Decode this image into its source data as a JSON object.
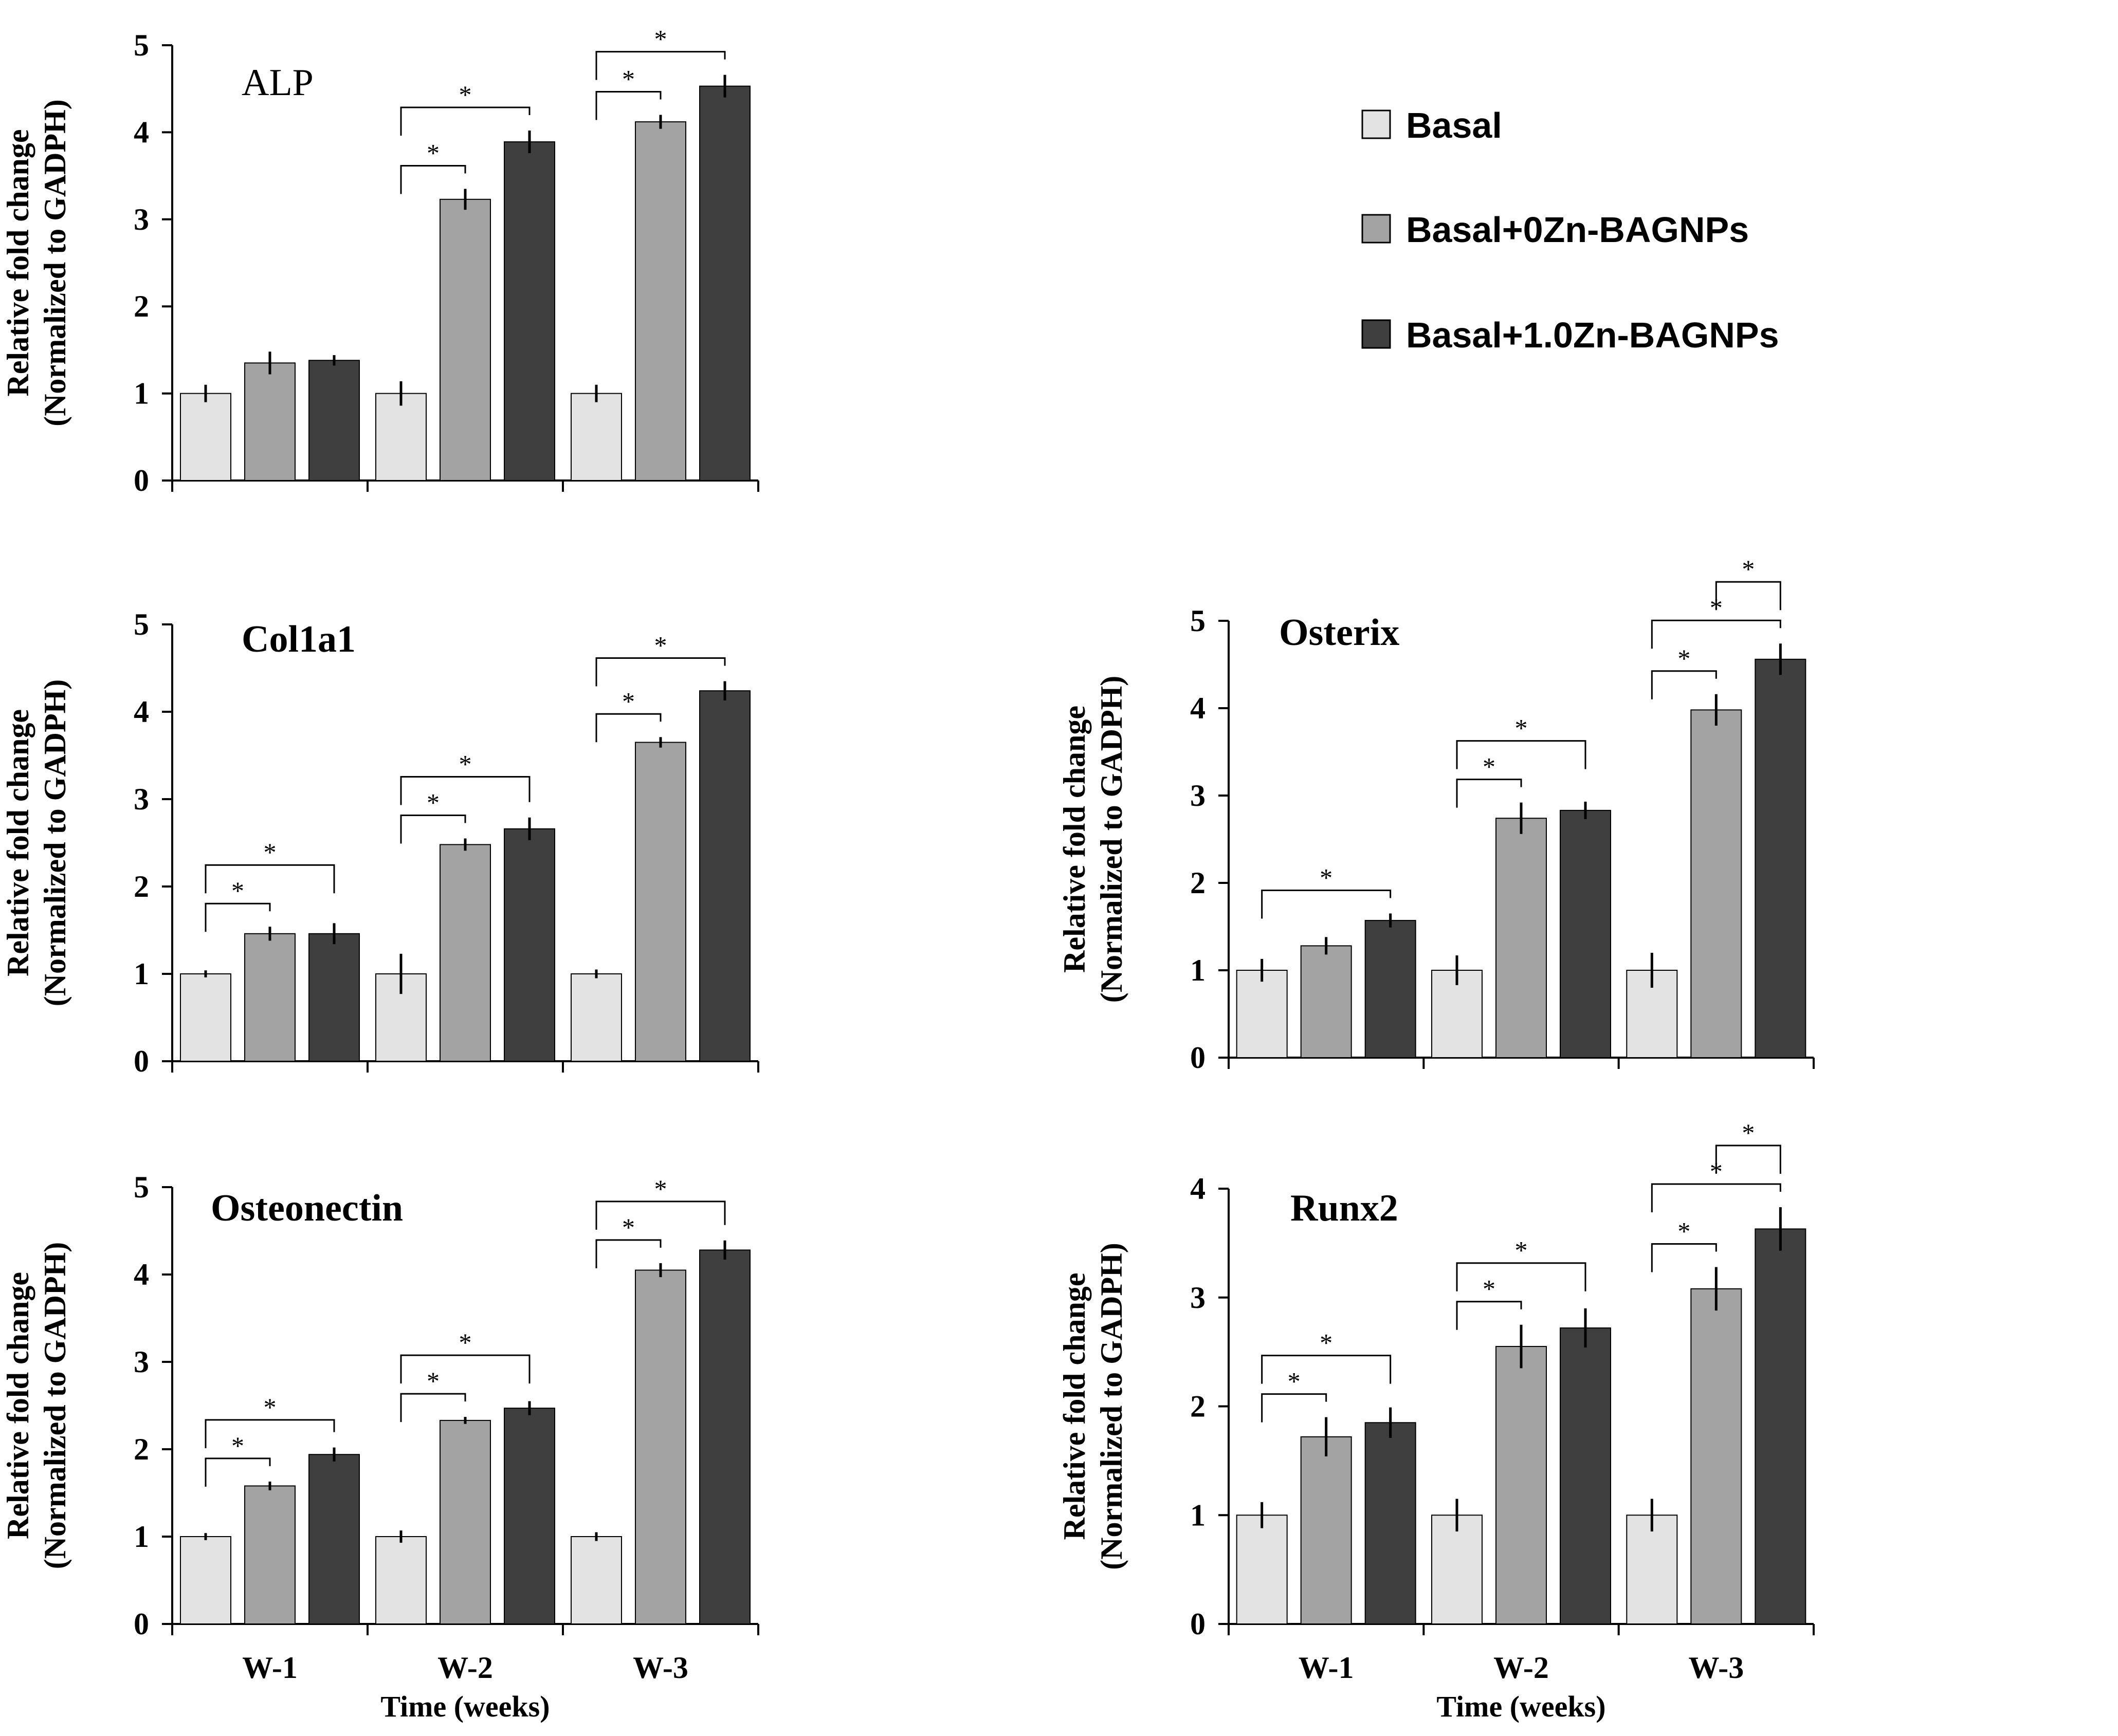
{
  "legend": [
    {
      "label": "Basal",
      "color": "#e3e3e3"
    },
    {
      "label": "Basal+0Zn-BAGNPs",
      "color": "#a3a3a3"
    },
    {
      "label": "Basal+1.0Zn-BAGNPs",
      "color": "#3f3f3f"
    }
  ],
  "chart_data": [
    {
      "type": "bar",
      "title": "ALP",
      "title_style": "normal",
      "categories": [
        "W-1",
        "W-2",
        "W-3"
      ],
      "show_category_labels": false,
      "xlabel": "",
      "ylabel": [
        "Relative fold change",
        "(Normalized to GADPH)"
      ],
      "ylim": [
        0,
        5
      ],
      "yticks": [
        0,
        1,
        2,
        3,
        4,
        5
      ],
      "series": [
        {
          "name": "Basal",
          "values": [
            1.0,
            1.0,
            1.0
          ],
          "errors": [
            0.1,
            0.14,
            0.1
          ]
        },
        {
          "name": "Basal+0Zn-BAGNPs",
          "values": [
            1.35,
            3.23,
            4.12
          ],
          "errors": [
            0.13,
            0.12,
            0.08
          ]
        },
        {
          "name": "Basal+1.0Zn-BAGNPs",
          "values": [
            1.38,
            3.89,
            4.53
          ],
          "errors": [
            0.06,
            0.13,
            0.13
          ]
        }
      ],
      "significance": [
        {
          "category": 1,
          "from": 0,
          "to": 1,
          "label": "*"
        },
        {
          "category": 1,
          "from": 0,
          "to": 2,
          "label": "*"
        },
        {
          "category": 2,
          "from": 0,
          "to": 1,
          "label": "*"
        },
        {
          "category": 2,
          "from": 0,
          "to": 2,
          "label": "*"
        }
      ]
    },
    {
      "type": "bar",
      "title": "Col1a1",
      "title_style": "bold",
      "categories": [
        "W-1",
        "W-2",
        "W-3"
      ],
      "show_category_labels": false,
      "xlabel": "",
      "ylabel": [
        "Relative fold change",
        "(Normalized to GADPH)"
      ],
      "ylim": [
        0,
        5
      ],
      "yticks": [
        0,
        1,
        2,
        3,
        4,
        5
      ],
      "series": [
        {
          "name": "Basal",
          "values": [
            1.0,
            1.0,
            1.0
          ],
          "errors": [
            0.04,
            0.23,
            0.05
          ]
        },
        {
          "name": "Basal+0Zn-BAGNPs",
          "values": [
            1.46,
            2.48,
            3.65
          ],
          "errors": [
            0.08,
            0.07,
            0.06
          ]
        },
        {
          "name": "Basal+1.0Zn-BAGNPs",
          "values": [
            1.46,
            2.66,
            4.24
          ],
          "errors": [
            0.12,
            0.13,
            0.11
          ]
        }
      ],
      "significance": [
        {
          "category": 0,
          "from": 0,
          "to": 1,
          "label": "*"
        },
        {
          "category": 0,
          "from": 0,
          "to": 2,
          "label": "*"
        },
        {
          "category": 1,
          "from": 0,
          "to": 1,
          "label": "*"
        },
        {
          "category": 1,
          "from": 0,
          "to": 2,
          "label": "*"
        },
        {
          "category": 2,
          "from": 0,
          "to": 1,
          "label": "*"
        },
        {
          "category": 2,
          "from": 0,
          "to": 2,
          "label": "*"
        }
      ]
    },
    {
      "type": "bar",
      "title": "Osterix",
      "title_style": "bold",
      "categories": [
        "W-1",
        "W-2",
        "W-3"
      ],
      "show_category_labels": false,
      "xlabel": "",
      "ylabel": [
        "Relative fold change",
        "(Normalized to GADPH)"
      ],
      "ylim": [
        0,
        5
      ],
      "yticks": [
        0,
        1,
        2,
        3,
        4,
        5
      ],
      "series": [
        {
          "name": "Basal",
          "values": [
            1.0,
            1.0,
            1.0
          ],
          "errors": [
            0.13,
            0.17,
            0.2
          ]
        },
        {
          "name": "Basal+0Zn-BAGNPs",
          "values": [
            1.28,
            2.74,
            3.98
          ],
          "errors": [
            0.1,
            0.18,
            0.18
          ]
        },
        {
          "name": "Basal+1.0Zn-BAGNPs",
          "values": [
            1.57,
            2.83,
            4.56
          ],
          "errors": [
            0.08,
            0.1,
            0.18
          ]
        }
      ],
      "significance": [
        {
          "category": 0,
          "from": 0,
          "to": 2,
          "label": "*"
        },
        {
          "category": 1,
          "from": 0,
          "to": 1,
          "label": "*"
        },
        {
          "category": 1,
          "from": 0,
          "to": 2,
          "label": "*"
        },
        {
          "category": 2,
          "from": 0,
          "to": 1,
          "label": "*"
        },
        {
          "category": 2,
          "from": 0,
          "to": 2,
          "label": "*"
        },
        {
          "category": 2,
          "from": 1,
          "to": 2,
          "label": "*"
        }
      ]
    },
    {
      "type": "bar",
      "title": "Osteonectin",
      "title_style": "bold",
      "categories": [
        "W-1",
        "W-2",
        "W-3"
      ],
      "show_category_labels": true,
      "xlabel": "Time (weeks)",
      "ylabel": [
        "Relative fold change",
        "(Normalized to GADPH)"
      ],
      "ylim": [
        0,
        5
      ],
      "yticks": [
        0,
        1,
        2,
        3,
        4,
        5
      ],
      "series": [
        {
          "name": "Basal",
          "values": [
            1.0,
            1.0,
            1.0
          ],
          "errors": [
            0.04,
            0.07,
            0.05
          ]
        },
        {
          "name": "Basal+0Zn-BAGNPs",
          "values": [
            1.58,
            2.33,
            4.05
          ],
          "errors": [
            0.05,
            0.04,
            0.08
          ]
        },
        {
          "name": "Basal+1.0Zn-BAGNPs",
          "values": [
            1.94,
            2.47,
            4.28
          ],
          "errors": [
            0.08,
            0.08,
            0.11
          ]
        }
      ],
      "significance": [
        {
          "category": 0,
          "from": 0,
          "to": 1,
          "label": "*"
        },
        {
          "category": 0,
          "from": 0,
          "to": 2,
          "label": "*"
        },
        {
          "category": 1,
          "from": 0,
          "to": 1,
          "label": "*"
        },
        {
          "category": 1,
          "from": 0,
          "to": 2,
          "label": "*"
        },
        {
          "category": 2,
          "from": 0,
          "to": 1,
          "label": "*"
        },
        {
          "category": 2,
          "from": 0,
          "to": 2,
          "label": "*"
        }
      ]
    },
    {
      "type": "bar",
      "title": "Runx2",
      "title_style": "bold",
      "categories": [
        "W-1",
        "W-2",
        "W-3"
      ],
      "show_category_labels": true,
      "xlabel": "Time (weeks)",
      "ylabel": [
        "Relative fold change",
        "(Normalized to GADPH)"
      ],
      "ylim": [
        0,
        4
      ],
      "yticks": [
        0,
        1,
        2,
        3,
        4
      ],
      "series": [
        {
          "name": "Basal",
          "values": [
            1.0,
            1.0,
            1.0
          ],
          "errors": [
            0.12,
            0.15,
            0.15
          ]
        },
        {
          "name": "Basal+0Zn-BAGNPs",
          "values": [
            1.72,
            2.55,
            3.08
          ],
          "errors": [
            0.18,
            0.2,
            0.2
          ]
        },
        {
          "name": "Basal+1.0Zn-BAGNPs",
          "values": [
            1.85,
            2.72,
            3.63
          ],
          "errors": [
            0.14,
            0.18,
            0.2
          ]
        }
      ],
      "significance": [
        {
          "category": 0,
          "from": 0,
          "to": 1,
          "label": "*"
        },
        {
          "category": 0,
          "from": 0,
          "to": 2,
          "label": "*"
        },
        {
          "category": 1,
          "from": 0,
          "to": 1,
          "label": "*"
        },
        {
          "category": 1,
          "from": 0,
          "to": 2,
          "label": "*"
        },
        {
          "category": 2,
          "from": 0,
          "to": 1,
          "label": "*"
        },
        {
          "category": 2,
          "from": 0,
          "to": 2,
          "label": "*"
        },
        {
          "category": 2,
          "from": 1,
          "to": 2,
          "label": "*"
        }
      ]
    }
  ]
}
